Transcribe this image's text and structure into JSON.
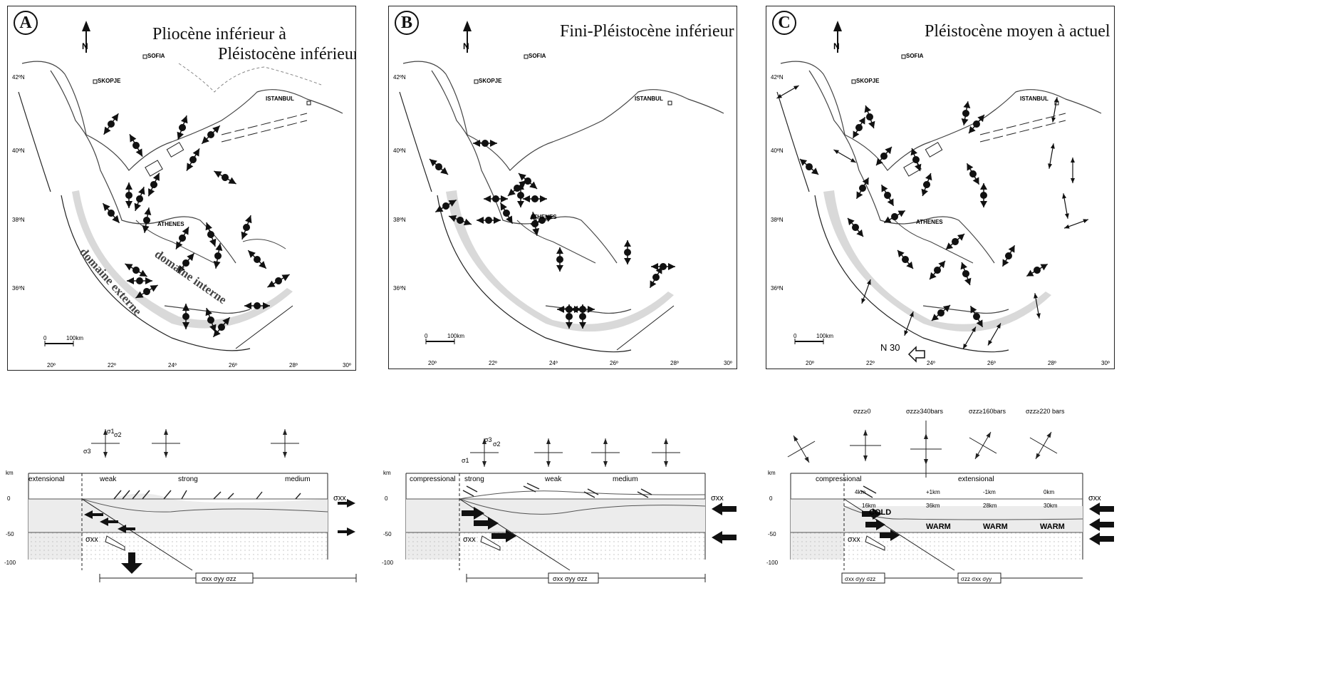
{
  "colors": {
    "stroke": "#222222",
    "shade": "#d9d9d9",
    "section_fill": "#ececec",
    "dots": "#bbbbbb"
  },
  "maps": [
    {
      "letter": "A",
      "title_line1": "Pliocène inférieur à",
      "title_line2": "Pléistocène inférieur",
      "cities": {
        "sofia": "SOFIA",
        "skopje": "SKOPJE",
        "istanbul": "ISTANBUL",
        "athenes": "ATHENES"
      },
      "lat_ticks": [
        "42ºN",
        "40ºN",
        "38ºN",
        "36ºN"
      ],
      "lon_ticks": [
        "20º",
        "22º",
        "24º",
        "26º",
        "28º",
        "30º"
      ],
      "scale": {
        "zero": "0",
        "len": "100km"
      },
      "labels": {
        "externe": "domaine externe",
        "interne": "domaine interne"
      },
      "north": "N"
    },
    {
      "letter": "B",
      "title_line1": "Fini-Pléistocène inférieur",
      "title_line2": "",
      "cities": {
        "sofia": "SOFIA",
        "skopje": "SKOPJE",
        "istanbul": "ISTANBUL",
        "athenes": "ATHENES"
      },
      "lat_ticks": [
        "42ºN",
        "40ºN",
        "38ºN",
        "36ºN"
      ],
      "lon_ticks": [
        "20º",
        "22º",
        "24º",
        "26º",
        "28º",
        "30º"
      ],
      "scale": {
        "zero": "0",
        "len": "100km"
      },
      "labels": {
        "externe": "",
        "interne": ""
      },
      "north": "N"
    },
    {
      "letter": "C",
      "title_line1": "Pléistocène moyen à actuel",
      "title_line2": "",
      "cities": {
        "sofia": "SOFIA",
        "skopje": "SKOPJE",
        "istanbul": "ISTANBUL",
        "athenes": "ATHENES"
      },
      "lat_ticks": [
        "42ºN",
        "40ºN",
        "38ºN",
        "36ºN"
      ],
      "lon_ticks": [
        "20º",
        "22º",
        "24º",
        "26º",
        "28º",
        "30º"
      ],
      "scale": {
        "zero": "0",
        "len": "100km"
      },
      "labels": {
        "externe": "",
        "interne": ""
      },
      "north": "N",
      "n30": "N 30"
    }
  ],
  "sections": [
    {
      "regime_left": "extensional",
      "regime_labels": [
        "weak",
        "strong",
        "medium"
      ],
      "depths": [
        "0",
        "-50",
        "-100"
      ],
      "km": "km",
      "sxx": "σxx",
      "stress_formula": "σxx σyy σzz",
      "ellipsoid_labels": {
        "s1": "σ1",
        "s2": "σ2",
        "s3": "σ3"
      },
      "stress_top": [],
      "crust_labels": [],
      "depth_values": []
    },
    {
      "regime_left": "compressional",
      "regime_labels": [
        "strong",
        "weak",
        "medium"
      ],
      "depths": [
        "0",
        "-50",
        "-100"
      ],
      "km": "km",
      "sxx": "σxx",
      "stress_formula": "σxx σyy σzz",
      "ellipsoid_labels": {
        "s1": "σ1",
        "s2": "σ2",
        "s3": "σ3"
      },
      "stress_top": [],
      "crust_labels": [],
      "depth_values": []
    },
    {
      "regime_left": "compressional",
      "regime_labels": [
        "extensional"
      ],
      "depths": [
        "0",
        "-50",
        "-100"
      ],
      "km": "km",
      "sxx": "σxx",
      "stress_formula": "σxx σyy σzz",
      "stress_formula2": "σzz σxx σyy",
      "ellipsoid_labels": {
        "s1": "σ1",
        "s2": "σ2",
        "s3": "σ3"
      },
      "stress_top": [
        "σzz≥0",
        "σzz≥340bars",
        "σzz≥160bars",
        "σzz≥220 bars"
      ],
      "crust_labels": [
        "COLD",
        "WARM",
        "WARM",
        "WARM"
      ],
      "depth_values": [
        "4km",
        "+1km",
        "-1km",
        "0km",
        "16km",
        "36km",
        "28km",
        "30km"
      ]
    }
  ]
}
